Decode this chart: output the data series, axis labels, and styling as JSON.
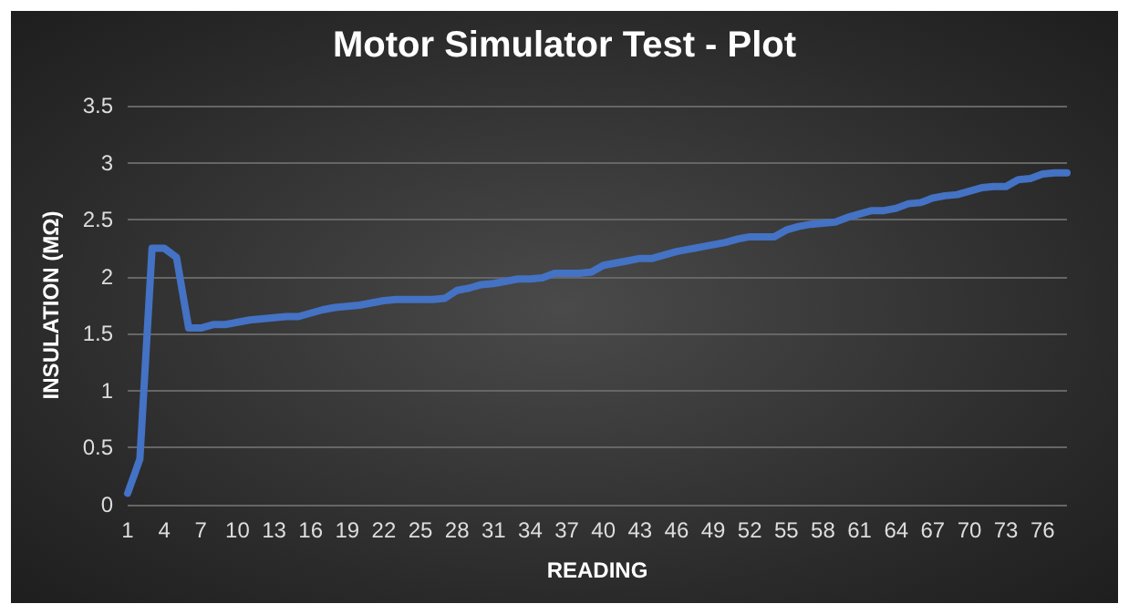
{
  "chart_data": {
    "type": "line",
    "title": "Motor Simulator Test - Plot",
    "xlabel": "READING",
    "ylabel": "INSULATION (MΩ)",
    "categories": [
      "1",
      null,
      null,
      "4",
      null,
      null,
      "7",
      null,
      null,
      "10",
      null,
      null,
      "13",
      null,
      null,
      "16",
      null,
      null,
      "19",
      null,
      null,
      "22",
      null,
      null,
      "25",
      null,
      null,
      "28",
      null,
      null,
      "31",
      null,
      null,
      "34",
      null,
      null,
      "37",
      null,
      null,
      "40",
      null,
      null,
      "43",
      null,
      null,
      "46",
      null,
      null,
      "49",
      null,
      null,
      "52",
      null,
      null,
      "55",
      null,
      null,
      "58",
      null,
      null,
      "61",
      null,
      null,
      "64",
      null,
      null,
      "67",
      null,
      null,
      "70",
      null,
      null,
      "73",
      null,
      null,
      "76",
      null,
      null
    ],
    "series": [
      {
        "color": "#4472c4",
        "values": [
          0.1,
          0.4,
          2.25,
          2.25,
          2.17,
          1.55,
          1.55,
          1.58,
          1.58,
          1.6,
          1.62,
          1.63,
          1.64,
          1.65,
          1.65,
          1.68,
          1.71,
          1.73,
          1.74,
          1.75,
          1.77,
          1.79,
          1.8,
          1.8,
          1.8,
          1.8,
          1.81,
          1.88,
          1.9,
          1.93,
          1.94,
          1.96,
          1.98,
          1.98,
          1.99,
          2.03,
          2.03,
          2.03,
          2.04,
          2.1,
          2.12,
          2.14,
          2.16,
          2.16,
          2.19,
          2.22,
          2.24,
          2.26,
          2.28,
          2.3,
          2.33,
          2.35,
          2.35,
          2.35,
          2.41,
          2.44,
          2.46,
          2.47,
          2.48,
          2.52,
          2.55,
          2.58,
          2.58,
          2.6,
          2.64,
          2.65,
          2.69,
          2.71,
          2.72,
          2.75,
          2.78,
          2.79,
          2.79,
          2.85,
          2.86,
          2.9,
          2.91,
          2.91
        ]
      }
    ],
    "ylim": [
      0,
      3.5
    ],
    "yticks": [
      0,
      0.5,
      1,
      1.5,
      2,
      2.5,
      3,
      3.5
    ],
    "grid": "y",
    "marker": "none",
    "line_style": "solid"
  }
}
